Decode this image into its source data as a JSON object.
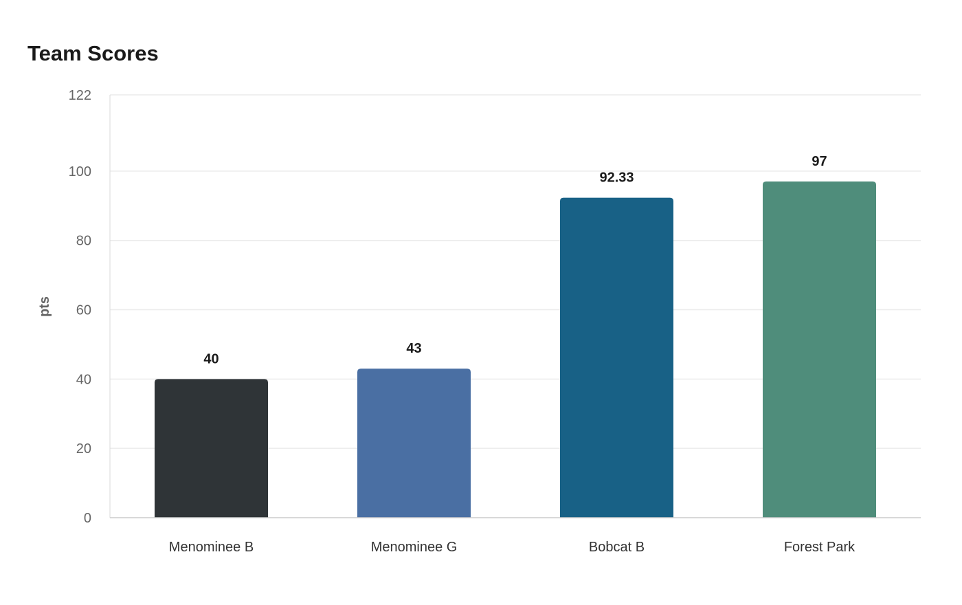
{
  "chart_data": {
    "type": "bar",
    "title": "Team Scores",
    "xlabel": "",
    "ylabel": "pts",
    "categories": [
      "Menominee B",
      "Menominee G",
      "Bobcat B",
      "Forest Park"
    ],
    "values": [
      40,
      43,
      92.33,
      97
    ],
    "value_labels": [
      "40",
      "43",
      "92.33",
      "97"
    ],
    "colors": [
      "#2f3437",
      "#4a6fa3",
      "#186186",
      "#4f8d7b"
    ],
    "ylim": [
      0,
      122
    ],
    "yticks": [
      0,
      20,
      40,
      60,
      80,
      100,
      122
    ],
    "grid": true,
    "legend": "none"
  }
}
